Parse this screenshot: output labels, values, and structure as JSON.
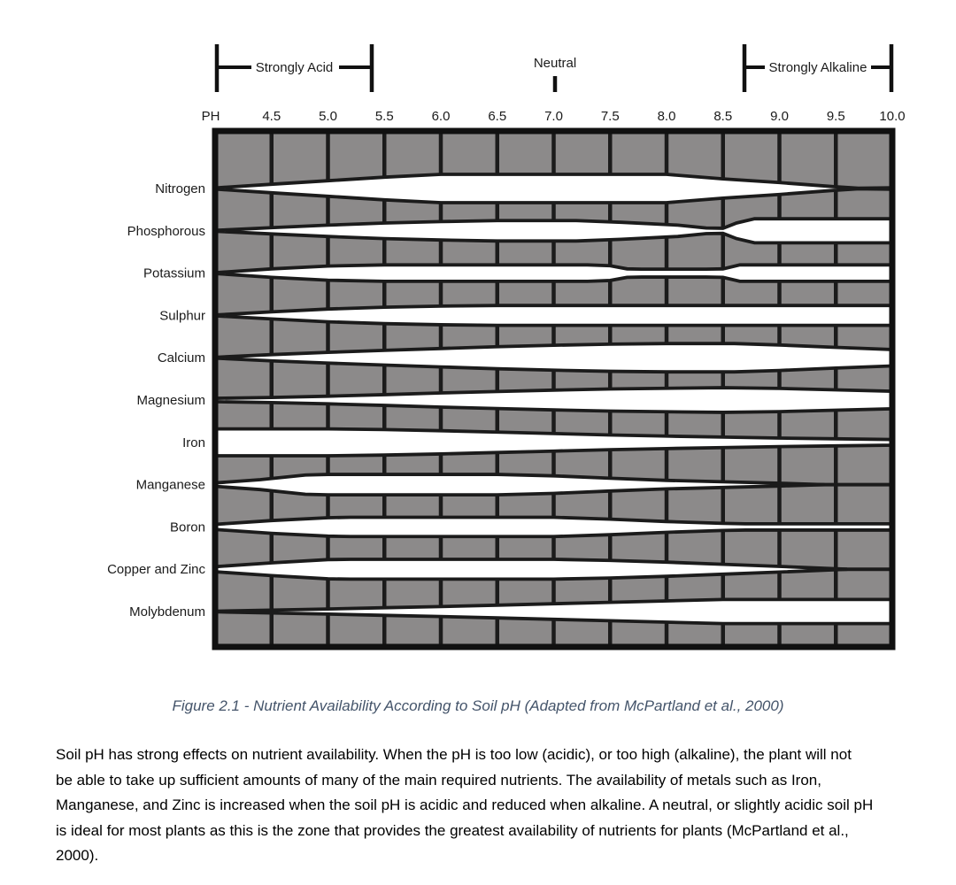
{
  "figure": {
    "annotations": {
      "strongly_acid": "Strongly Acid",
      "neutral": "Neutral",
      "strongly_alkaline": "Strongly Alkaline"
    }
  },
  "chart_data": {
    "type": "area",
    "title": "Nutrient Availability According to Soil pH",
    "xlabel": "PH",
    "x_range": [
      4.0,
      10.0
    ],
    "x_ticks": [
      "4.5",
      "5.0",
      "5.5",
      "6.0",
      "6.5",
      "7.0",
      "7.5",
      "8.0",
      "8.5",
      "9.0",
      "9.5",
      "10.0"
    ],
    "y_meaning": "relative nutrient availability shown as white band thickness (0 = unavailable, 1 = maximum)",
    "regions": {
      "strongly_acid_ph": [
        4.0,
        5.4
      ],
      "neutral_ph": 7.0,
      "strongly_alkaline_ph": [
        8.65,
        10.0
      ]
    },
    "grid": "0.5 pH columns, one row per nutrient",
    "legend_position": "none",
    "series": [
      {
        "name": "Nitrogen",
        "availability": [
          [
            4.0,
            0.04
          ],
          [
            4.5,
            0.3
          ],
          [
            5.0,
            0.55
          ],
          [
            5.5,
            0.8
          ],
          [
            6.0,
            1.0
          ],
          [
            8.0,
            1.0
          ],
          [
            8.5,
            0.68
          ],
          [
            9.0,
            0.42
          ],
          [
            9.5,
            0.12
          ],
          [
            9.7,
            0.02
          ],
          [
            10.0,
            0.05
          ]
        ]
      },
      {
        "name": "Phosphorous",
        "availability": [
          [
            4.0,
            0.03
          ],
          [
            4.5,
            0.22
          ],
          [
            5.0,
            0.4
          ],
          [
            5.5,
            0.55
          ],
          [
            6.0,
            0.65
          ],
          [
            6.5,
            0.72
          ],
          [
            7.2,
            0.72
          ],
          [
            7.6,
            0.6
          ],
          [
            8.1,
            0.4
          ],
          [
            8.35,
            0.2
          ],
          [
            8.5,
            0.18
          ],
          [
            8.62,
            0.55
          ],
          [
            8.78,
            0.85
          ],
          [
            10.0,
            0.85
          ]
        ]
      },
      {
        "name": "Potassium",
        "availability": [
          [
            4.0,
            0.03
          ],
          [
            4.5,
            0.3
          ],
          [
            5.0,
            0.5
          ],
          [
            5.5,
            0.58
          ],
          [
            7.3,
            0.58
          ],
          [
            7.5,
            0.52
          ],
          [
            7.65,
            0.3
          ],
          [
            7.78,
            0.28
          ],
          [
            8.35,
            0.28
          ],
          [
            8.5,
            0.3
          ],
          [
            8.65,
            0.58
          ],
          [
            10.0,
            0.58
          ]
        ]
      },
      {
        "name": "Sulphur",
        "availability": [
          [
            4.0,
            0.03
          ],
          [
            4.5,
            0.25
          ],
          [
            5.0,
            0.45
          ],
          [
            5.5,
            0.58
          ],
          [
            6.0,
            0.66
          ],
          [
            6.5,
            0.7
          ],
          [
            10.0,
            0.7
          ]
        ]
      },
      {
        "name": "Calcium",
        "availability": [
          [
            4.0,
            0.03
          ],
          [
            4.5,
            0.22
          ],
          [
            5.0,
            0.38
          ],
          [
            5.5,
            0.52
          ],
          [
            6.0,
            0.65
          ],
          [
            6.5,
            0.78
          ],
          [
            7.0,
            0.88
          ],
          [
            7.5,
            0.96
          ],
          [
            8.0,
            1.0
          ],
          [
            8.6,
            1.0
          ],
          [
            9.0,
            0.9
          ],
          [
            9.5,
            0.73
          ],
          [
            10.0,
            0.58
          ]
        ]
      },
      {
        "name": "Magnesium",
        "availability": [
          [
            4.0,
            0.12
          ],
          [
            4.5,
            0.18
          ],
          [
            5.0,
            0.27
          ],
          [
            5.5,
            0.38
          ],
          [
            6.0,
            0.5
          ],
          [
            6.5,
            0.6
          ],
          [
            7.0,
            0.7
          ],
          [
            7.5,
            0.78
          ],
          [
            8.0,
            0.83
          ],
          [
            8.5,
            0.87
          ],
          [
            9.0,
            0.82
          ],
          [
            9.5,
            0.72
          ],
          [
            10.0,
            0.62
          ]
        ]
      },
      {
        "name": "Iron",
        "availability": [
          [
            4.0,
            0.95
          ],
          [
            5.0,
            0.95
          ],
          [
            5.5,
            0.9
          ],
          [
            6.0,
            0.82
          ],
          [
            6.5,
            0.72
          ],
          [
            7.0,
            0.62
          ],
          [
            7.5,
            0.52
          ],
          [
            8.0,
            0.44
          ],
          [
            8.5,
            0.37
          ],
          [
            9.0,
            0.3
          ],
          [
            9.5,
            0.25
          ],
          [
            10.0,
            0.2
          ]
        ]
      },
      {
        "name": "Manganese",
        "availability": [
          [
            4.0,
            0.12
          ],
          [
            4.4,
            0.35
          ],
          [
            4.8,
            0.68
          ],
          [
            5.0,
            0.72
          ],
          [
            6.5,
            0.72
          ],
          [
            7.0,
            0.62
          ],
          [
            7.5,
            0.45
          ],
          [
            8.0,
            0.3
          ],
          [
            8.5,
            0.2
          ],
          [
            9.0,
            0.1
          ],
          [
            9.4,
            0.0
          ]
        ]
      },
      {
        "name": "Boron",
        "availability": [
          [
            4.0,
            0.18
          ],
          [
            4.5,
            0.45
          ],
          [
            5.0,
            0.65
          ],
          [
            5.2,
            0.68
          ],
          [
            7.0,
            0.68
          ],
          [
            7.5,
            0.55
          ],
          [
            8.0,
            0.38
          ],
          [
            8.5,
            0.25
          ],
          [
            8.7,
            0.22
          ],
          [
            10.0,
            0.22
          ]
        ]
      },
      {
        "name": "Copper and Zinc",
        "availability": [
          [
            4.0,
            0.18
          ],
          [
            4.5,
            0.45
          ],
          [
            5.0,
            0.68
          ],
          [
            5.2,
            0.7
          ],
          [
            7.0,
            0.7
          ],
          [
            7.5,
            0.62
          ],
          [
            8.0,
            0.5
          ],
          [
            8.5,
            0.35
          ],
          [
            9.0,
            0.2
          ],
          [
            9.6,
            0.0
          ]
        ]
      },
      {
        "name": "Molybdenum",
        "availability": [
          [
            4.0,
            0.02
          ],
          [
            4.5,
            0.1
          ],
          [
            5.0,
            0.18
          ],
          [
            5.5,
            0.27
          ],
          [
            6.0,
            0.35
          ],
          [
            6.5,
            0.45
          ],
          [
            7.0,
            0.55
          ],
          [
            7.5,
            0.65
          ],
          [
            8.0,
            0.75
          ],
          [
            8.5,
            0.85
          ],
          [
            10.0,
            0.85
          ]
        ]
      }
    ],
    "colors": {
      "cell_fill": "#8c8a8a",
      "line": "#1b1b1b",
      "band_fill": "#ffffff",
      "border": "#111111"
    }
  },
  "caption": {
    "text": "Figure 2.1 - Nutrient Availability According to Soil pH (Adapted from McPartland et al., 2000)",
    "color": "#44546a"
  },
  "body_text": {
    "text": "Soil pH has strong effects on nutrient availability. When the pH is too low (acidic), or too high (alkaline), the plant will not\nbe able to take up sufficient amounts of many of the main required nutrients. The availability of metals such as Iron,\nManganese, and Zinc is increased when the soil pH is acidic and reduced when alkaline. A neutral, or slightly acidic soil pH\nis ideal for most plants as this is the zone that provides the greatest availability of nutrients for plants (McPartland et al.,\n2000)."
  }
}
